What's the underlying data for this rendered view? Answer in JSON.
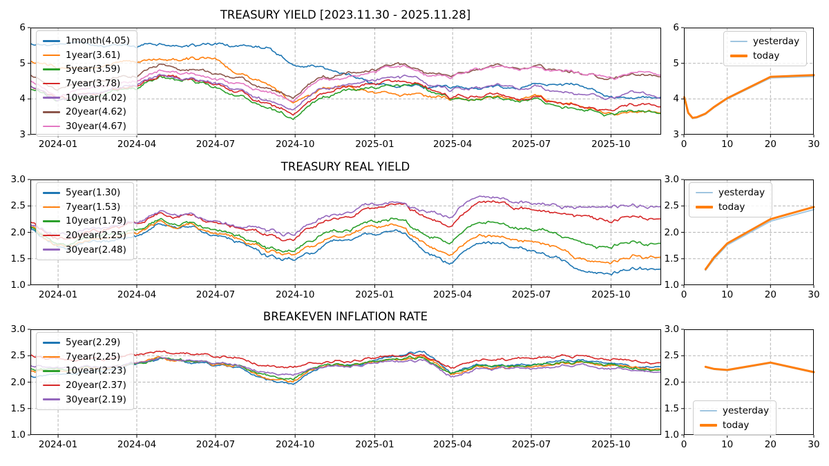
{
  "figure": {
    "background": "#ffffff",
    "grid_color": "#b3b3b3",
    "axis_color": "#000000",
    "legend_background": "rgba(255,255,255,0.8)"
  },
  "chart_data": [
    {
      "id": "treasury-yield-history",
      "type": "line",
      "title": "TREASURY YIELD [2023.11.30 - 2025.11.28]",
      "x_start": "2023-11-30",
      "x_end": "2025-11-28",
      "sampling": "monthly control points from 2023-11-30 to 2025-11-28",
      "xticks": [
        "2024-01",
        "2024-04",
        "2024-07",
        "2024-10",
        "2025-01",
        "2025-04",
        "2025-07",
        "2025-10"
      ],
      "ylim": [
        3,
        6
      ],
      "yticks": [
        "3",
        "4",
        "5",
        "6"
      ],
      "grid": true,
      "legend_position": "upper left",
      "series": [
        {
          "name": "1month(4.05)",
          "color": "#1f77b4",
          "last_value": 4.05,
          "monthly_values": [
            5.55,
            5.54,
            5.54,
            5.53,
            5.5,
            5.5,
            5.48,
            5.48,
            5.47,
            5.42,
            5.02,
            4.92,
            4.72,
            4.48,
            4.34,
            4.33,
            4.33,
            4.34,
            4.35,
            4.4,
            4.44,
            4.4,
            4.12,
            3.98,
            4.05
          ]
        },
        {
          "name": "1year(3.61)",
          "color": "#ff7f0e",
          "last_value": 3.61,
          "monthly_values": [
            5.05,
            4.88,
            4.82,
            4.98,
            5.08,
            5.14,
            5.12,
            5.1,
            4.68,
            4.4,
            3.98,
            4.28,
            4.38,
            4.22,
            4.18,
            4.08,
            3.98,
            4.02,
            4.08,
            4.05,
            3.92,
            3.8,
            3.66,
            3.62,
            3.61
          ]
        },
        {
          "name": "5year(3.59)",
          "color": "#2ca02c",
          "last_value": 3.59,
          "monthly_values": [
            4.27,
            3.92,
            3.98,
            4.2,
            4.3,
            4.63,
            4.52,
            4.32,
            4.12,
            3.72,
            3.5,
            4.02,
            4.28,
            4.38,
            4.42,
            4.28,
            3.96,
            4.02,
            4.05,
            3.96,
            3.86,
            3.7,
            3.6,
            3.66,
            3.59
          ]
        },
        {
          "name": "7year(3.78)",
          "color": "#d62728",
          "last_value": 3.78,
          "monthly_values": [
            4.36,
            3.98,
            4.06,
            4.26,
            4.36,
            4.67,
            4.56,
            4.38,
            4.2,
            3.82,
            3.62,
            4.14,
            4.35,
            4.46,
            4.5,
            4.36,
            4.06,
            4.12,
            4.15,
            4.06,
            3.97,
            3.84,
            3.73,
            3.8,
            3.78
          ]
        },
        {
          "name": "10year(4.02)",
          "color": "#9467bd",
          "last_value": 4.02,
          "monthly_values": [
            4.35,
            3.95,
            4.1,
            4.28,
            4.38,
            4.68,
            4.55,
            4.42,
            4.22,
            3.92,
            3.75,
            4.28,
            4.42,
            4.56,
            4.66,
            4.45,
            4.22,
            4.32,
            4.4,
            4.33,
            4.26,
            4.16,
            4.05,
            4.12,
            4.02
          ]
        },
        {
          "name": "20year(4.62)",
          "color": "#8c564b",
          "last_value": 4.62,
          "monthly_values": [
            4.68,
            4.22,
            4.42,
            4.58,
            4.66,
            4.96,
            4.82,
            4.68,
            4.58,
            4.28,
            4.12,
            4.62,
            4.72,
            4.88,
            5.0,
            4.72,
            4.62,
            4.88,
            4.95,
            4.9,
            4.88,
            4.72,
            4.6,
            4.68,
            4.62
          ]
        },
        {
          "name": "30year(4.67)",
          "color": "#e377c2",
          "last_value": 4.67,
          "monthly_values": [
            4.52,
            4.05,
            4.28,
            4.44,
            4.52,
            4.8,
            4.66,
            4.52,
            4.44,
            4.15,
            4.0,
            4.52,
            4.62,
            4.8,
            4.94,
            4.66,
            4.58,
            4.88,
            4.92,
            4.88,
            4.85,
            4.74,
            4.64,
            4.72,
            4.67
          ]
        }
      ]
    },
    {
      "id": "treasury-yield-curve",
      "type": "line",
      "title": "",
      "xlim": [
        0,
        30
      ],
      "xticks": [
        "0",
        "10",
        "20",
        "30"
      ],
      "ylim": [
        3,
        6
      ],
      "yticks": [
        "3",
        "4",
        "5",
        "6"
      ],
      "grid": true,
      "legend_position": "upper right",
      "x_unit": "maturity (years)",
      "series": [
        {
          "name": "yesterday",
          "color": "#9fc5e0",
          "width": 1.8,
          "x": [
            0.08,
            1,
            2,
            3,
            5,
            7,
            10,
            20,
            30
          ],
          "y": [
            4.03,
            3.59,
            3.45,
            3.47,
            3.57,
            3.76,
            4.0,
            4.59,
            4.63
          ]
        },
        {
          "name": "today",
          "color": "#ff7f0e",
          "width": 3,
          "x": [
            0.08,
            1,
            2,
            3,
            5,
            7,
            10,
            20,
            30
          ],
          "y": [
            4.05,
            3.61,
            3.47,
            3.49,
            3.59,
            3.78,
            4.02,
            4.62,
            4.67
          ]
        }
      ]
    },
    {
      "id": "treasury-real-yield-history",
      "type": "line",
      "title": "TREASURY REAL YIELD",
      "x_start": "2023-11-30",
      "x_end": "2025-11-28",
      "sampling": "monthly control points from 2023-11-30 to 2025-11-28",
      "xticks": [
        "2024-01",
        "2024-04",
        "2024-07",
        "2024-10",
        "2025-01",
        "2025-04",
        "2025-07",
        "2025-10"
      ],
      "ylim": [
        1.0,
        3.0
      ],
      "yticks": [
        "1.0",
        "1.5",
        "2.0",
        "2.5",
        "3.0"
      ],
      "grid": true,
      "legend_position": "upper left",
      "series": [
        {
          "name": "5year(1.30)",
          "color": "#1f77b4",
          "last_value": 1.3,
          "monthly_values": [
            2.1,
            1.72,
            1.76,
            1.85,
            1.92,
            2.18,
            2.1,
            1.96,
            1.82,
            1.56,
            1.47,
            1.7,
            1.9,
            1.96,
            2.0,
            1.62,
            1.42,
            1.76,
            1.78,
            1.7,
            1.56,
            1.26,
            1.18,
            1.34,
            1.3
          ]
        },
        {
          "name": "7year(1.53)",
          "color": "#ff7f0e",
          "last_value": 1.53,
          "monthly_values": [
            2.12,
            1.76,
            1.81,
            1.89,
            1.97,
            2.22,
            2.14,
            2.0,
            1.87,
            1.64,
            1.56,
            1.8,
            1.99,
            2.06,
            2.1,
            1.76,
            1.58,
            1.92,
            1.94,
            1.86,
            1.73,
            1.48,
            1.42,
            1.57,
            1.53
          ]
        },
        {
          "name": "10year(1.79)",
          "color": "#2ca02c",
          "last_value": 1.79,
          "monthly_values": [
            2.12,
            1.8,
            1.86,
            1.93,
            2.01,
            2.27,
            2.18,
            2.06,
            1.93,
            1.72,
            1.63,
            1.92,
            2.1,
            2.2,
            2.26,
            1.96,
            1.8,
            2.16,
            2.18,
            2.1,
            1.99,
            1.78,
            1.7,
            1.85,
            1.79
          ]
        },
        {
          "name": "20year(2.25)",
          "color": "#d62728",
          "last_value": 2.25,
          "monthly_values": [
            2.2,
            1.9,
            1.96,
            2.05,
            2.12,
            2.4,
            2.3,
            2.18,
            2.08,
            1.92,
            1.85,
            2.16,
            2.3,
            2.43,
            2.5,
            2.28,
            2.15,
            2.52,
            2.55,
            2.46,
            2.4,
            2.26,
            2.2,
            2.32,
            2.25
          ]
        },
        {
          "name": "30year(2.48)",
          "color": "#9467bd",
          "last_value": 2.48,
          "monthly_values": [
            2.16,
            1.96,
            2.02,
            2.09,
            2.16,
            2.42,
            2.33,
            2.23,
            2.13,
            2.01,
            1.95,
            2.24,
            2.38,
            2.51,
            2.56,
            2.4,
            2.32,
            2.66,
            2.64,
            2.58,
            2.54,
            2.44,
            2.46,
            2.56,
            2.48
          ]
        }
      ]
    },
    {
      "id": "treasury-real-yield-curve",
      "type": "line",
      "title": "",
      "xlim": [
        0,
        30
      ],
      "xticks": [
        "0",
        "10",
        "20",
        "30"
      ],
      "ylim": [
        1.0,
        3.0
      ],
      "yticks": [
        "1.0",
        "1.5",
        "2.0",
        "2.5",
        "3.0"
      ],
      "grid": true,
      "legend_position": "upper left",
      "x_unit": "maturity (years)",
      "series": [
        {
          "name": "yesterday",
          "color": "#9fc5e0",
          "width": 1.8,
          "x": [
            5,
            7,
            10,
            20,
            30
          ],
          "y": [
            1.28,
            1.5,
            1.76,
            2.21,
            2.43
          ]
        },
        {
          "name": "today",
          "color": "#ff7f0e",
          "width": 3,
          "x": [
            5,
            7,
            10,
            20,
            30
          ],
          "y": [
            1.3,
            1.53,
            1.79,
            2.25,
            2.48
          ]
        }
      ]
    },
    {
      "id": "breakeven-inflation-history",
      "type": "line",
      "title": "BREAKEVEN INFLATION RATE",
      "x_start": "2023-11-30",
      "x_end": "2025-11-28",
      "sampling": "monthly control points from 2023-11-30 to 2025-11-28",
      "xticks": [
        "2024-01",
        "2024-04",
        "2024-07",
        "2024-10",
        "2025-01",
        "2025-04",
        "2025-07",
        "2025-10"
      ],
      "ylim": [
        1.0,
        3.0
      ],
      "yticks": [
        "1.0",
        "1.5",
        "2.0",
        "2.5",
        "3.0"
      ],
      "grid": true,
      "legend_position": "upper left",
      "series": [
        {
          "name": "5year(2.29)",
          "color": "#1f77b4",
          "last_value": 2.29,
          "monthly_values": [
            2.12,
            2.15,
            2.22,
            2.28,
            2.32,
            2.42,
            2.36,
            2.32,
            2.28,
            2.05,
            1.92,
            2.28,
            2.35,
            2.38,
            2.48,
            2.58,
            2.18,
            2.33,
            2.3,
            2.32,
            2.38,
            2.42,
            2.35,
            2.32,
            2.29
          ]
        },
        {
          "name": "7year(2.25)",
          "color": "#ff7f0e",
          "last_value": 2.25,
          "monthly_values": [
            2.2,
            2.22,
            2.27,
            2.31,
            2.34,
            2.43,
            2.38,
            2.33,
            2.3,
            2.1,
            2.0,
            2.3,
            2.35,
            2.38,
            2.44,
            2.5,
            2.15,
            2.3,
            2.28,
            2.3,
            2.35,
            2.38,
            2.31,
            2.27,
            2.25
          ]
        },
        {
          "name": "10year(2.23)",
          "color": "#2ca02c",
          "last_value": 2.23,
          "monthly_values": [
            2.25,
            2.26,
            2.3,
            2.33,
            2.36,
            2.44,
            2.39,
            2.34,
            2.31,
            2.14,
            2.06,
            2.32,
            2.36,
            2.39,
            2.43,
            2.46,
            2.18,
            2.32,
            2.3,
            2.32,
            2.36,
            2.38,
            2.31,
            2.27,
            2.23
          ]
        },
        {
          "name": "20year(2.37)",
          "color": "#d62728",
          "last_value": 2.37,
          "monthly_values": [
            2.5,
            2.44,
            2.46,
            2.48,
            2.51,
            2.56,
            2.52,
            2.49,
            2.46,
            2.32,
            2.28,
            2.38,
            2.42,
            2.46,
            2.49,
            2.51,
            2.29,
            2.43,
            2.43,
            2.46,
            2.49,
            2.49,
            2.43,
            2.41,
            2.37
          ]
        },
        {
          "name": "30year(2.19)",
          "color": "#9467bd",
          "last_value": 2.19,
          "monthly_values": [
            2.3,
            2.28,
            2.31,
            2.33,
            2.36,
            2.43,
            2.39,
            2.36,
            2.33,
            2.18,
            2.12,
            2.3,
            2.33,
            2.36,
            2.38,
            2.39,
            2.12,
            2.26,
            2.26,
            2.28,
            2.31,
            2.33,
            2.26,
            2.23,
            2.19
          ]
        }
      ]
    },
    {
      "id": "breakeven-inflation-curve",
      "type": "line",
      "title": "",
      "xlim": [
        0,
        30
      ],
      "xticks": [
        "0",
        "10",
        "20",
        "30"
      ],
      "ylim": [
        1.0,
        3.0
      ],
      "yticks": [
        "1.0",
        "1.5",
        "2.0",
        "2.5",
        "3.0"
      ],
      "grid": true,
      "legend_position": "lower left",
      "x_unit": "maturity (years)",
      "series": [
        {
          "name": "yesterday",
          "color": "#9fc5e0",
          "width": 1.8,
          "x": [
            5,
            7,
            10,
            20,
            30
          ],
          "y": [
            2.28,
            2.24,
            2.22,
            2.36,
            2.18
          ]
        },
        {
          "name": "today",
          "color": "#ff7f0e",
          "width": 3,
          "x": [
            5,
            7,
            10,
            20,
            30
          ],
          "y": [
            2.29,
            2.25,
            2.23,
            2.37,
            2.19
          ]
        }
      ]
    }
  ]
}
